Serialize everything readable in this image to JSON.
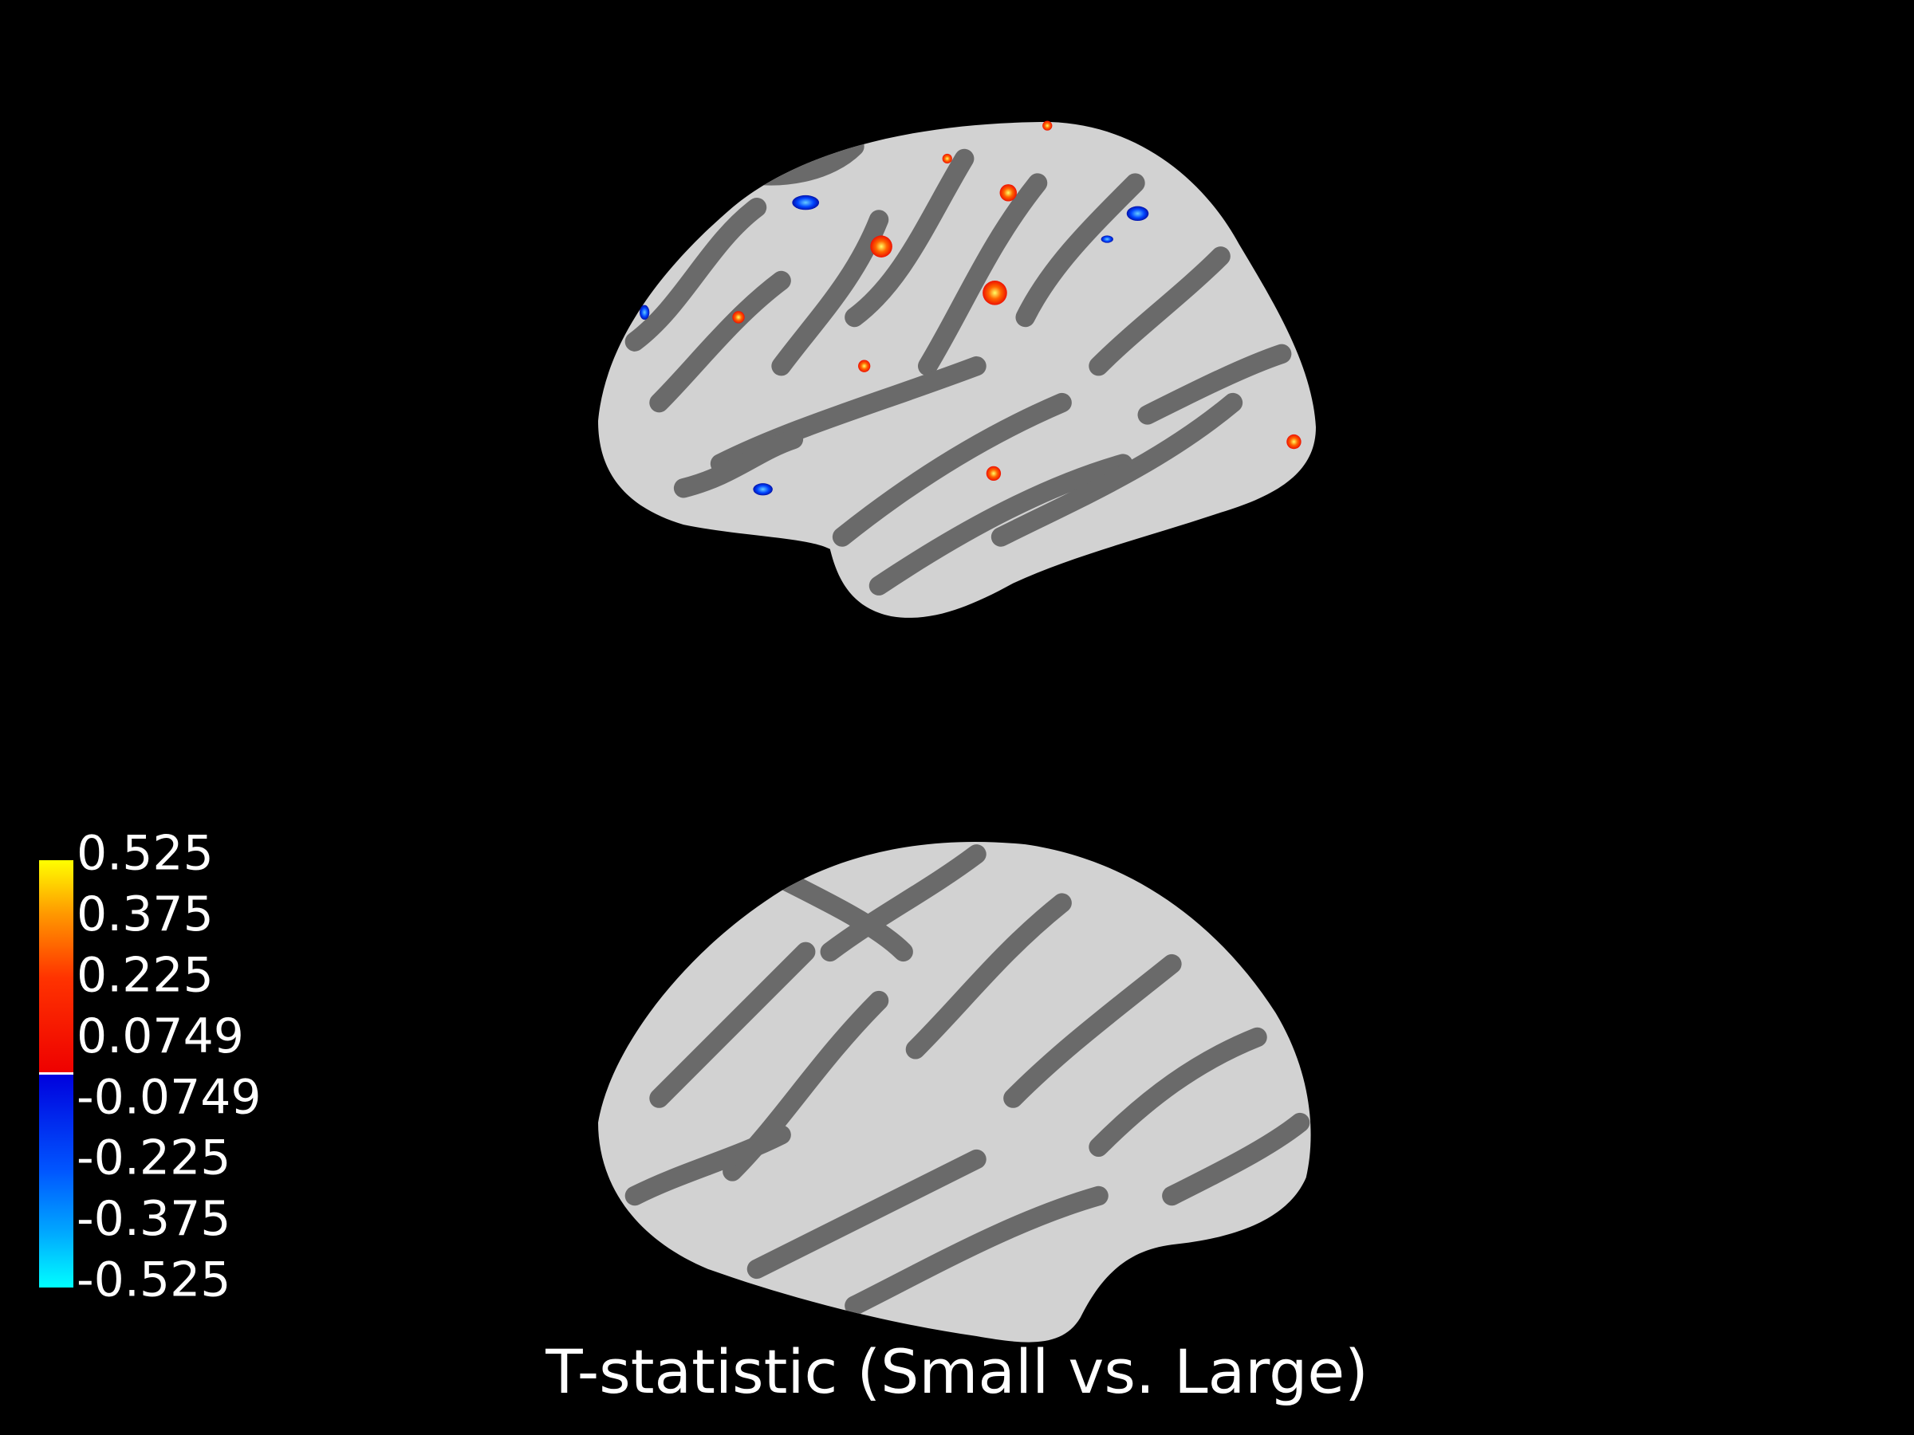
{
  "title": "T-statistic (Small vs. Large)",
  "colorbar": {
    "ticks": [
      0.525,
      0.375,
      0.225,
      0.0749,
      -0.0749,
      -0.225,
      -0.375,
      -0.525
    ]
  }
}
